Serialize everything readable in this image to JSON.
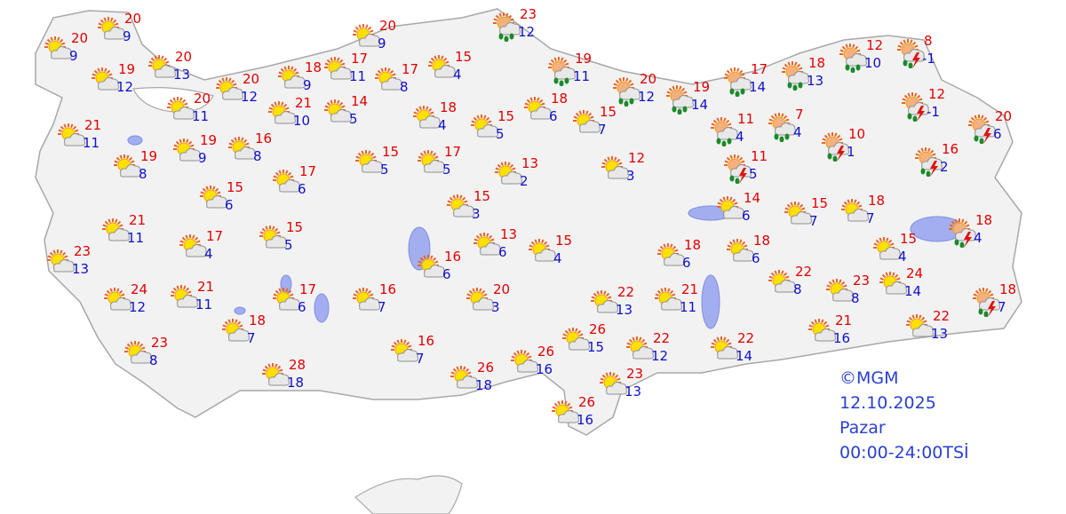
{
  "colors": {
    "high": "#e00000",
    "low": "#1010c8",
    "land": "#f2f2f2",
    "border": "#a8a8a8",
    "lake": "#a3aef0",
    "info": "#2a3fd0"
  },
  "info": {
    "copyright": "©MGM",
    "date": "12.10.2025",
    "day": "Pazar",
    "period": "00:00-24:00TSİ"
  },
  "cities": [
    {
      "high": "20",
      "low": "9",
      "icon": "partly-cloudy"
    },
    {
      "high": "20",
      "low": "9",
      "icon": "partly-cloudy"
    },
    {
      "high": "19",
      "low": "12",
      "icon": "partly-cloudy"
    },
    {
      "high": "20",
      "low": "13",
      "icon": "partly-cloudy"
    },
    {
      "high": "20",
      "low": "11",
      "icon": "partly-cloudy"
    },
    {
      "high": "20",
      "low": "12",
      "icon": "partly-cloudy"
    },
    {
      "high": "21",
      "low": "11",
      "icon": "partly-cloudy"
    },
    {
      "high": "19",
      "low": "8",
      "icon": "partly-cloudy"
    },
    {
      "high": "19",
      "low": "9",
      "icon": "partly-cloudy"
    },
    {
      "high": "16",
      "low": "8",
      "icon": "partly-cloudy"
    },
    {
      "high": "15",
      "low": "6",
      "icon": "partly-cloudy"
    },
    {
      "high": "17",
      "low": "6",
      "icon": "partly-cloudy"
    },
    {
      "high": "21",
      "low": "11",
      "icon": "partly-cloudy"
    },
    {
      "high": "17",
      "low": "4",
      "icon": "partly-cloudy"
    },
    {
      "high": "15",
      "low": "5",
      "icon": "partly-cloudy"
    },
    {
      "high": "23",
      "low": "13",
      "icon": "partly-cloudy"
    },
    {
      "high": "24",
      "low": "12",
      "icon": "partly-cloudy"
    },
    {
      "high": "21",
      "low": "11",
      "icon": "partly-cloudy"
    },
    {
      "high": "17",
      "low": "6",
      "icon": "partly-cloudy"
    },
    {
      "high": "18",
      "low": "7",
      "icon": "partly-cloudy"
    },
    {
      "high": "23",
      "low": "8",
      "icon": "partly-cloudy"
    },
    {
      "high": "28",
      "low": "18",
      "icon": "partly-cloudy"
    },
    {
      "high": "20",
      "low": "9",
      "icon": "partly-cloudy"
    },
    {
      "high": "18",
      "low": "9",
      "icon": "partly-cloudy"
    },
    {
      "high": "17",
      "low": "11",
      "icon": "partly-cloudy"
    },
    {
      "high": "17",
      "low": "8",
      "icon": "partly-cloudy"
    },
    {
      "high": "15",
      "low": "4",
      "icon": "partly-cloudy"
    },
    {
      "high": "21",
      "low": "10",
      "icon": "partly-cloudy"
    },
    {
      "high": "14",
      "low": "5",
      "icon": "partly-cloudy"
    },
    {
      "high": "18",
      "low": "4",
      "icon": "partly-cloudy"
    },
    {
      "high": "15",
      "low": "5",
      "icon": "partly-cloudy"
    },
    {
      "high": "18",
      "low": "6",
      "icon": "partly-cloudy"
    },
    {
      "high": "15",
      "low": "7",
      "icon": "partly-cloudy"
    },
    {
      "high": "15",
      "low": "5",
      "icon": "partly-cloudy"
    },
    {
      "high": "17",
      "low": "5",
      "icon": "partly-cloudy"
    },
    {
      "high": "13",
      "low": "2",
      "icon": "partly-cloudy"
    },
    {
      "high": "12",
      "low": "3",
      "icon": "partly-cloudy"
    },
    {
      "high": "15",
      "low": "3",
      "icon": "partly-cloudy"
    },
    {
      "high": "13",
      "low": "6",
      "icon": "partly-cloudy"
    },
    {
      "high": "15",
      "low": "4",
      "icon": "partly-cloudy"
    },
    {
      "high": "16",
      "low": "6",
      "icon": "partly-cloudy"
    },
    {
      "high": "16",
      "low": "7",
      "icon": "partly-cloudy"
    },
    {
      "high": "20",
      "low": "3",
      "icon": "partly-cloudy"
    },
    {
      "high": "16",
      "low": "7",
      "icon": "partly-cloudy"
    },
    {
      "high": "26",
      "low": "18",
      "icon": "partly-cloudy"
    },
    {
      "high": "26",
      "low": "16",
      "icon": "partly-cloudy"
    },
    {
      "high": "23",
      "low": "12",
      "icon": "rain"
    },
    {
      "high": "19",
      "low": "11",
      "icon": "rain"
    },
    {
      "high": "20",
      "low": "12",
      "icon": "rain"
    },
    {
      "high": "19",
      "low": "14",
      "icon": "rain"
    },
    {
      "high": "17",
      "low": "14",
      "icon": "rain"
    },
    {
      "high": "18",
      "low": "13",
      "icon": "rain"
    },
    {
      "high": "11",
      "low": "4",
      "icon": "rain"
    },
    {
      "high": "7",
      "low": "4",
      "icon": "rain"
    },
    {
      "high": "12",
      "low": "10",
      "icon": "rain"
    },
    {
      "high": "8",
      "low": "-1",
      "icon": "thunderstorm"
    },
    {
      "high": "12",
      "low": "-1",
      "icon": "thunderstorm"
    },
    {
      "high": "20",
      "low": "6",
      "icon": "thunderstorm"
    },
    {
      "high": "10",
      "low": "1",
      "icon": "thunderstorm"
    },
    {
      "high": "16",
      "low": "2",
      "icon": "thunderstorm"
    },
    {
      "high": "11",
      "low": "5",
      "icon": "thunderstorm"
    },
    {
      "high": "14",
      "low": "6",
      "icon": "partly-cloudy"
    },
    {
      "high": "15",
      "low": "7",
      "icon": "partly-cloudy"
    },
    {
      "high": "18",
      "low": "7",
      "icon": "partly-cloudy"
    },
    {
      "high": "15",
      "low": "4",
      "icon": "partly-cloudy"
    },
    {
      "high": "18",
      "low": "4",
      "icon": "thunderstorm"
    },
    {
      "high": "18",
      "low": "6",
      "icon": "partly-cloudy"
    },
    {
      "high": "18",
      "low": "6",
      "icon": "partly-cloudy"
    },
    {
      "high": "22",
      "low": "8",
      "icon": "partly-cloudy"
    },
    {
      "high": "23",
      "low": "8",
      "icon": "partly-cloudy"
    },
    {
      "high": "24",
      "low": "14",
      "icon": "partly-cloudy"
    },
    {
      "high": "18",
      "low": "7",
      "icon": "thunderstorm"
    },
    {
      "high": "22",
      "low": "13",
      "icon": "partly-cloudy"
    },
    {
      "high": "21",
      "low": "11",
      "icon": "partly-cloudy"
    },
    {
      "high": "21",
      "low": "16",
      "icon": "partly-cloudy"
    },
    {
      "high": "22",
      "low": "13",
      "icon": "partly-cloudy"
    },
    {
      "high": "26",
      "low": "15",
      "icon": "partly-cloudy"
    },
    {
      "high": "22",
      "low": "12",
      "icon": "partly-cloudy"
    },
    {
      "high": "22",
      "low": "14",
      "icon": "partly-cloudy"
    },
    {
      "high": "23",
      "low": "13",
      "icon": "partly-cloudy"
    },
    {
      "high": "26",
      "low": "16",
      "icon": "partly-cloudy"
    }
  ]
}
